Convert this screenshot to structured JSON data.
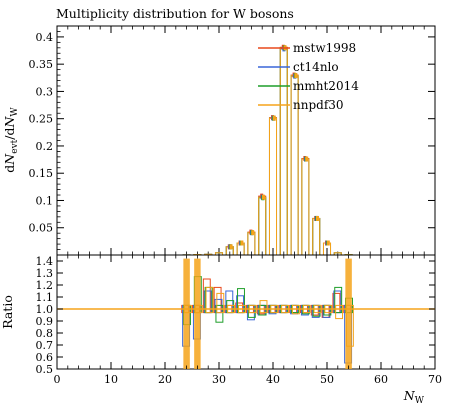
{
  "chart_data": {
    "type": "bar",
    "title": "Multiplicity distribution for W bosons",
    "xlabel": "N_W",
    "xlabel_main": "N",
    "xlabel_sub": "W",
    "ylabel": "dN_evt/dN_W",
    "ylabel_parts": {
      "d1": "d",
      "n1": "N",
      "sub1": "evt",
      "slash": "/",
      "d2": "d",
      "n2": "N",
      "sub2": "W"
    },
    "xlim": [
      0,
      70
    ],
    "ylim": [
      0,
      0.42
    ],
    "ratio_ylim": [
      0.5,
      1.45
    ],
    "ratio_ylabel": "Ratio",
    "x_ticks": [
      "0",
      "10",
      "20",
      "30",
      "40",
      "50",
      "60",
      "70"
    ],
    "y_ticks": [
      "0.05",
      "0.1",
      "0.15",
      "0.2",
      "0.25",
      "0.3",
      "0.35",
      "0.4"
    ],
    "ratio_ticks": [
      "0.5",
      "0.6",
      "0.7",
      "0.8",
      "0.9",
      "1.0",
      "1.1",
      "1.2",
      "1.3",
      "1.4"
    ],
    "bins": [
      24,
      26,
      28,
      30,
      32,
      34,
      36,
      38,
      40,
      42,
      44,
      46,
      48,
      50,
      52,
      54
    ],
    "series": [
      {
        "name": "mstw1998",
        "color": "#e8481c",
        "values": [
          0.0002,
          0.0008,
          0.0012,
          0.004,
          0.015,
          0.022,
          0.042,
          0.108,
          0.252,
          0.381,
          0.33,
          0.177,
          0.067,
          0.022,
          0.004,
          0.0006
        ],
        "ratio": [
          1.0,
          1.0,
          1.22,
          1.15,
          1.0,
          1.02,
          1.0,
          0.99,
          1.0,
          1.0,
          1.0,
          1.0,
          0.98,
          0.96,
          1.1,
          1.0
        ]
      },
      {
        "name": "ct14nlo",
        "color": "#3a67d8",
        "values": [
          0.0002,
          0.0008,
          0.0012,
          0.004,
          0.015,
          0.022,
          0.041,
          0.106,
          0.251,
          0.378,
          0.328,
          0.176,
          0.067,
          0.022,
          0.004,
          0.0006
        ],
        "ratio": [
          0.72,
          0.78,
          1.12,
          1.05,
          1.12,
          1.08,
          0.94,
          0.98,
          0.99,
          1.0,
          0.99,
          0.98,
          0.96,
          0.96,
          1.12,
          0.58
        ]
      },
      {
        "name": "mmht2014",
        "color": "#1f9e2a",
        "values": [
          0.0002,
          0.0008,
          0.0012,
          0.004,
          0.015,
          0.022,
          0.041,
          0.105,
          0.251,
          0.38,
          0.329,
          0.176,
          0.067,
          0.022,
          0.004,
          0.0006
        ],
        "ratio": [
          0.9,
          1.24,
          1.15,
          0.92,
          1.04,
          1.14,
          0.96,
          0.98,
          1.0,
          1.0,
          1.0,
          0.99,
          0.97,
          0.98,
          1.15,
          1.06
        ]
      },
      {
        "name": "nnpdf30",
        "color": "#f5a31a",
        "values": [
          0.0002,
          0.0008,
          0.0012,
          0.004,
          0.015,
          0.022,
          0.041,
          0.106,
          0.251,
          0.38,
          0.329,
          0.176,
          0.067,
          0.022,
          0.004,
          0.0006
        ],
        "ratio": [
          1.0,
          1.0,
          1.15,
          1.1,
          1.0,
          1.0,
          1.0,
          1.04,
          1.0,
          1.0,
          0.99,
          1.0,
          1.0,
          1.0,
          0.95,
          0.72
        ]
      }
    ]
  }
}
